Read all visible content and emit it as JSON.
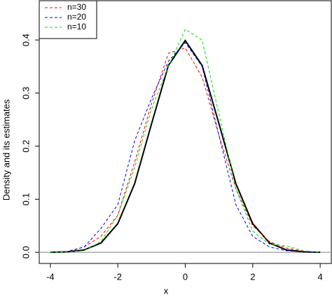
{
  "chart_data": {
    "type": "line",
    "x_label": "x",
    "y_label": "Density and its estimates",
    "x": [
      -4,
      -3.5,
      -3,
      -2.5,
      -2,
      -1.5,
      -1,
      -0.5,
      0,
      0.5,
      1,
      1.5,
      2,
      2.5,
      3,
      3.5,
      4
    ],
    "series": [
      {
        "color": "#000000",
        "values": [
          0.0001,
          0.0009,
          0.0044,
          0.0175,
          0.054,
          0.1295,
          0.242,
          0.352,
          0.399,
          0.352,
          0.242,
          0.1295,
          0.054,
          0.0175,
          0.0044,
          0.0009,
          0.0001
        ]
      },
      {
        "name": "n=30",
        "color": "#ff0000",
        "values": [
          0.0,
          0.002,
          0.01,
          0.03,
          0.07,
          0.17,
          0.28,
          0.375,
          0.385,
          0.33,
          0.22,
          0.12,
          0.05,
          0.02,
          0.008,
          0.002,
          0.0
        ]
      },
      {
        "name": "n=20",
        "color": "#0000ff",
        "values": [
          0.0,
          0.001,
          0.01,
          0.045,
          0.09,
          0.21,
          0.29,
          0.36,
          0.395,
          0.35,
          0.22,
          0.09,
          0.03,
          0.01,
          0.003,
          0.001,
          0.0
        ]
      },
      {
        "name": "n=10",
        "color": "#00dd00",
        "values": [
          0.0,
          0.0005,
          0.003,
          0.02,
          0.07,
          0.16,
          0.27,
          0.35,
          0.42,
          0.4,
          0.26,
          0.12,
          0.04,
          0.015,
          0.012,
          0.003,
          0.0
        ]
      }
    ],
    "xlim": [
      -4.33,
      4.33
    ],
    "ylim": [
      -0.021,
      0.474
    ],
    "xticks": [
      -4,
      -2,
      0,
      2,
      4
    ],
    "yticks": [
      {
        "value": 0,
        "label": "0.0"
      },
      0.1,
      0.2,
      0.3,
      0.4
    ],
    "reference_line": 0,
    "legend": "top-left"
  }
}
